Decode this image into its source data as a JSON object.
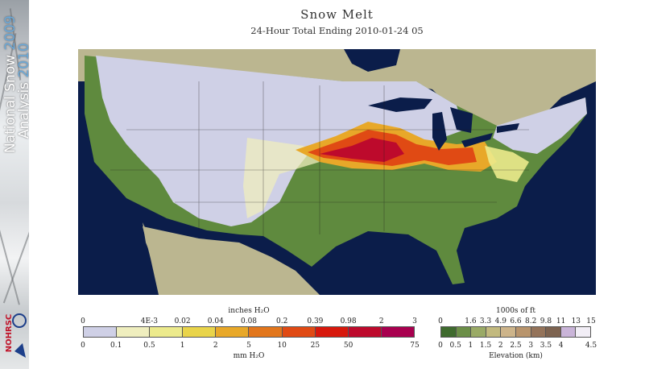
{
  "title": "Snow Melt",
  "subtitle": "24-Hour Total Ending 2010-01-24 05",
  "banner": {
    "line1_text": "National Snow ",
    "line1_year": "2009",
    "line2_text": "Analysis ",
    "line2_year": "2010",
    "logo_text": "NOHRSC"
  },
  "melt_legend": {
    "units_top": "inches H₂O",
    "units_bottom": "mm H₂O",
    "top_ticks": [
      "0",
      "4E-3",
      "0.02",
      "0.04",
      "0.08",
      "0.2",
      "0.39",
      "0.98",
      "2",
      "3"
    ],
    "bottom_ticks": [
      "0",
      "0.1",
      "0.5",
      "1",
      "2",
      "5",
      "10",
      "25",
      "50",
      "75"
    ],
    "colors": [
      "#cfd0e6",
      "#efeebe",
      "#ecea8c",
      "#e9d44a",
      "#e8a829",
      "#e2761c",
      "#e04a14",
      "#d7180c",
      "#bd0a2c",
      "#a8004f"
    ]
  },
  "elevation_legend": {
    "units_top": "1000s of ft",
    "units_bottom": "Elevation (km)",
    "top_ticks": [
      "0",
      "1.6",
      "3.3",
      "4.9",
      "6.6",
      "8.2",
      "9.8",
      "11",
      "13",
      "15"
    ],
    "bottom_ticks": [
      "0",
      "0.5",
      "1",
      "1.5",
      "2",
      "2.5",
      "3",
      "3.5",
      "4",
      "4.5"
    ],
    "colors": [
      "#3f6b2e",
      "#6c8f48",
      "#9aaa66",
      "#c2b97e",
      "#cdb48a",
      "#b8946c",
      "#94735a",
      "#7d6350",
      "#c9b4d8",
      "#f2eef6"
    ]
  }
}
